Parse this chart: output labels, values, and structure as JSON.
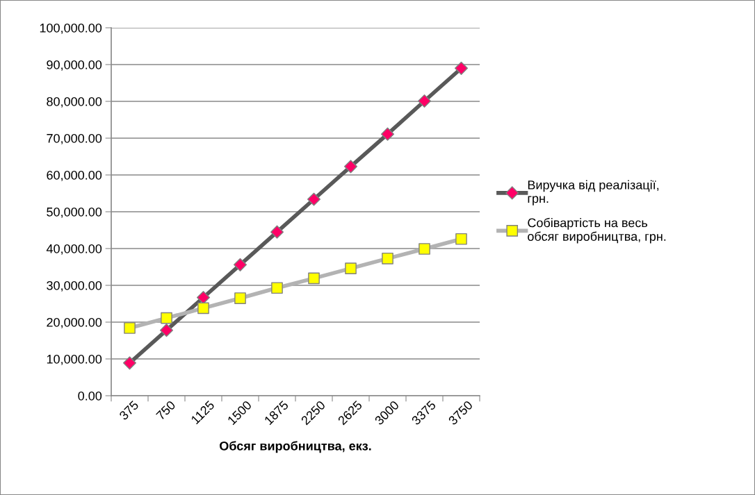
{
  "chart_data": {
    "type": "line",
    "xlabel": "Обсяг виробництва, екз.",
    "categories": [
      "375",
      "750",
      "1125",
      "1500",
      "1875",
      "2250",
      "2625",
      "3000",
      "3375",
      "3750"
    ],
    "series": [
      {
        "name": "Виручка від реалізації, грн.",
        "color": "#595959",
        "colors": [
          "#ff0066",
          "#ff0066",
          "#ff0066",
          "#ff0066",
          "#ff0066",
          "#ff0066",
          "#ff0066",
          "#ff0066",
          "#ff0066",
          "#ff0066"
        ],
        "marker": "diamond",
        "values": [
          8900,
          17800,
          26700,
          35600,
          44500,
          53400,
          62300,
          71100,
          80100,
          89000
        ]
      },
      {
        "name": "Собівартість на весь обсяг виробництва, грн.",
        "color": "#b3b3b3",
        "colors": [
          "#ffff00",
          "#ffff00",
          "#ffff00",
          "#ffff00",
          "#ffff00",
          "#ffff00",
          "#ffff00",
          "#ffff00",
          "#ffff00",
          "#ffff00"
        ],
        "marker": "square",
        "values": [
          18400,
          21100,
          23800,
          26500,
          29300,
          31900,
          34600,
          37300,
          39900,
          42600
        ]
      }
    ],
    "ylim": [
      0,
      100000
    ],
    "yticks": [
      {
        "value": 0,
        "label": "0.00"
      },
      {
        "value": 10000,
        "label": "10,000.00"
      },
      {
        "value": 20000,
        "label": "20,000.00"
      },
      {
        "value": 30000,
        "label": "30,000.00"
      },
      {
        "value": 40000,
        "label": "40,000.00"
      },
      {
        "value": 50000,
        "label": "50,000.00"
      },
      {
        "value": 60000,
        "label": "60,000.00"
      },
      {
        "value": 70000,
        "label": "70,000.00"
      },
      {
        "value": 80000,
        "label": "80,000.00"
      },
      {
        "value": 90000,
        "label": "90,000.00"
      },
      {
        "value": 100000,
        "label": "100,000.00"
      }
    ],
    "grid": "y",
    "legend": "right"
  }
}
